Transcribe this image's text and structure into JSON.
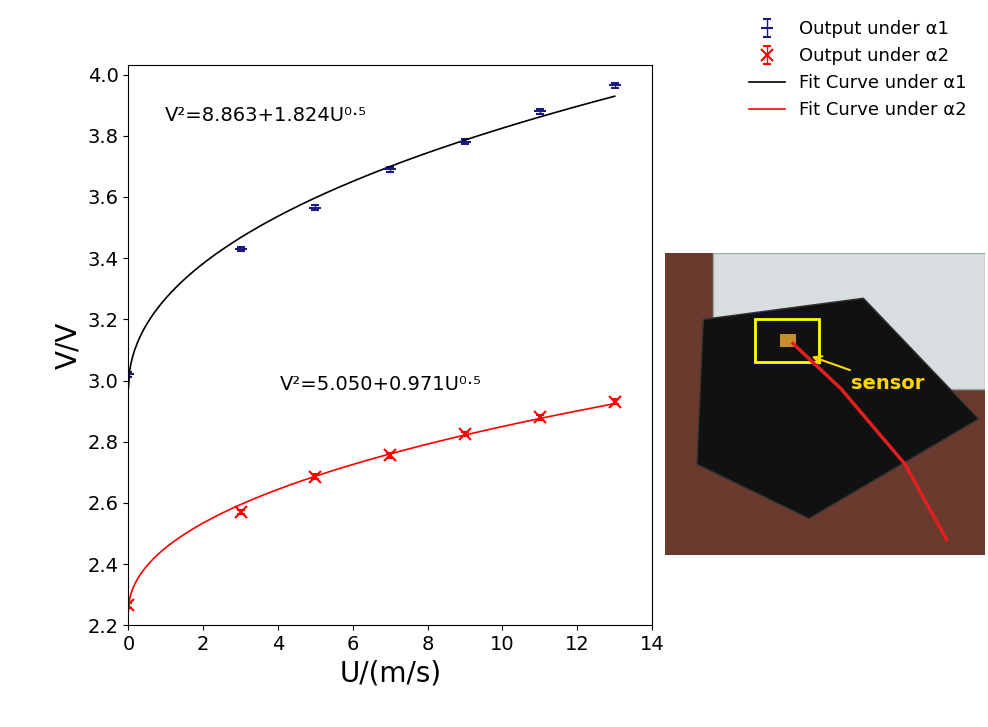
{
  "chart_data": {
    "type": "scatter",
    "x_label": "U/(m/s)",
    "y_label": "V/V",
    "xlim": [
      0,
      14
    ],
    "xticks": [
      0,
      2,
      4,
      6,
      8,
      10,
      12,
      14
    ],
    "ylim": [
      2.2,
      4.03
    ],
    "yticks": [
      2.2,
      2.4,
      2.6,
      2.8,
      3.0,
      3.2,
      3.4,
      3.6,
      3.8,
      4.0
    ],
    "grid": false,
    "legend": "upper right",
    "series": [
      {
        "name": "Output under α1",
        "type": "scatter",
        "color": "#1a1a80",
        "marker": "_",
        "x": [
          0,
          3,
          5,
          7,
          9,
          11,
          13
        ],
        "values": [
          3.02,
          3.43,
          3.565,
          3.69,
          3.78,
          3.88,
          3.965
        ],
        "errors": [
          0.008,
          0.008,
          0.008,
          0.008,
          0.008,
          0.008,
          0.008
        ]
      },
      {
        "name": "Output under α2",
        "type": "scatter",
        "color": "#ff0000",
        "marker": "x",
        "x": [
          0,
          3,
          5,
          7,
          9,
          11,
          13
        ],
        "values": [
          2.265,
          2.57,
          2.685,
          2.755,
          2.825,
          2.88,
          2.93
        ],
        "errors": [
          0.008,
          0.008,
          0.008,
          0.008,
          0.008,
          0.008,
          0.008
        ]
      },
      {
        "name": "Fit Curve under α1",
        "type": "line",
        "color": "#000000",
        "line_style": "solid",
        "fit": {
          "intercept": 8.863,
          "slope": 1.824
        },
        "equation": "V²=8.863+1.824U⁰·⁵"
      },
      {
        "name": "Fit Curve under α2",
        "type": "line",
        "color": "#ff0000",
        "line_style": "solid",
        "fit": {
          "intercept": 5.05,
          "slope": 0.971
        },
        "equation": "V²=5.050+0.971U⁰·⁵"
      }
    ],
    "inset": {
      "annotation": "sensor"
    }
  }
}
